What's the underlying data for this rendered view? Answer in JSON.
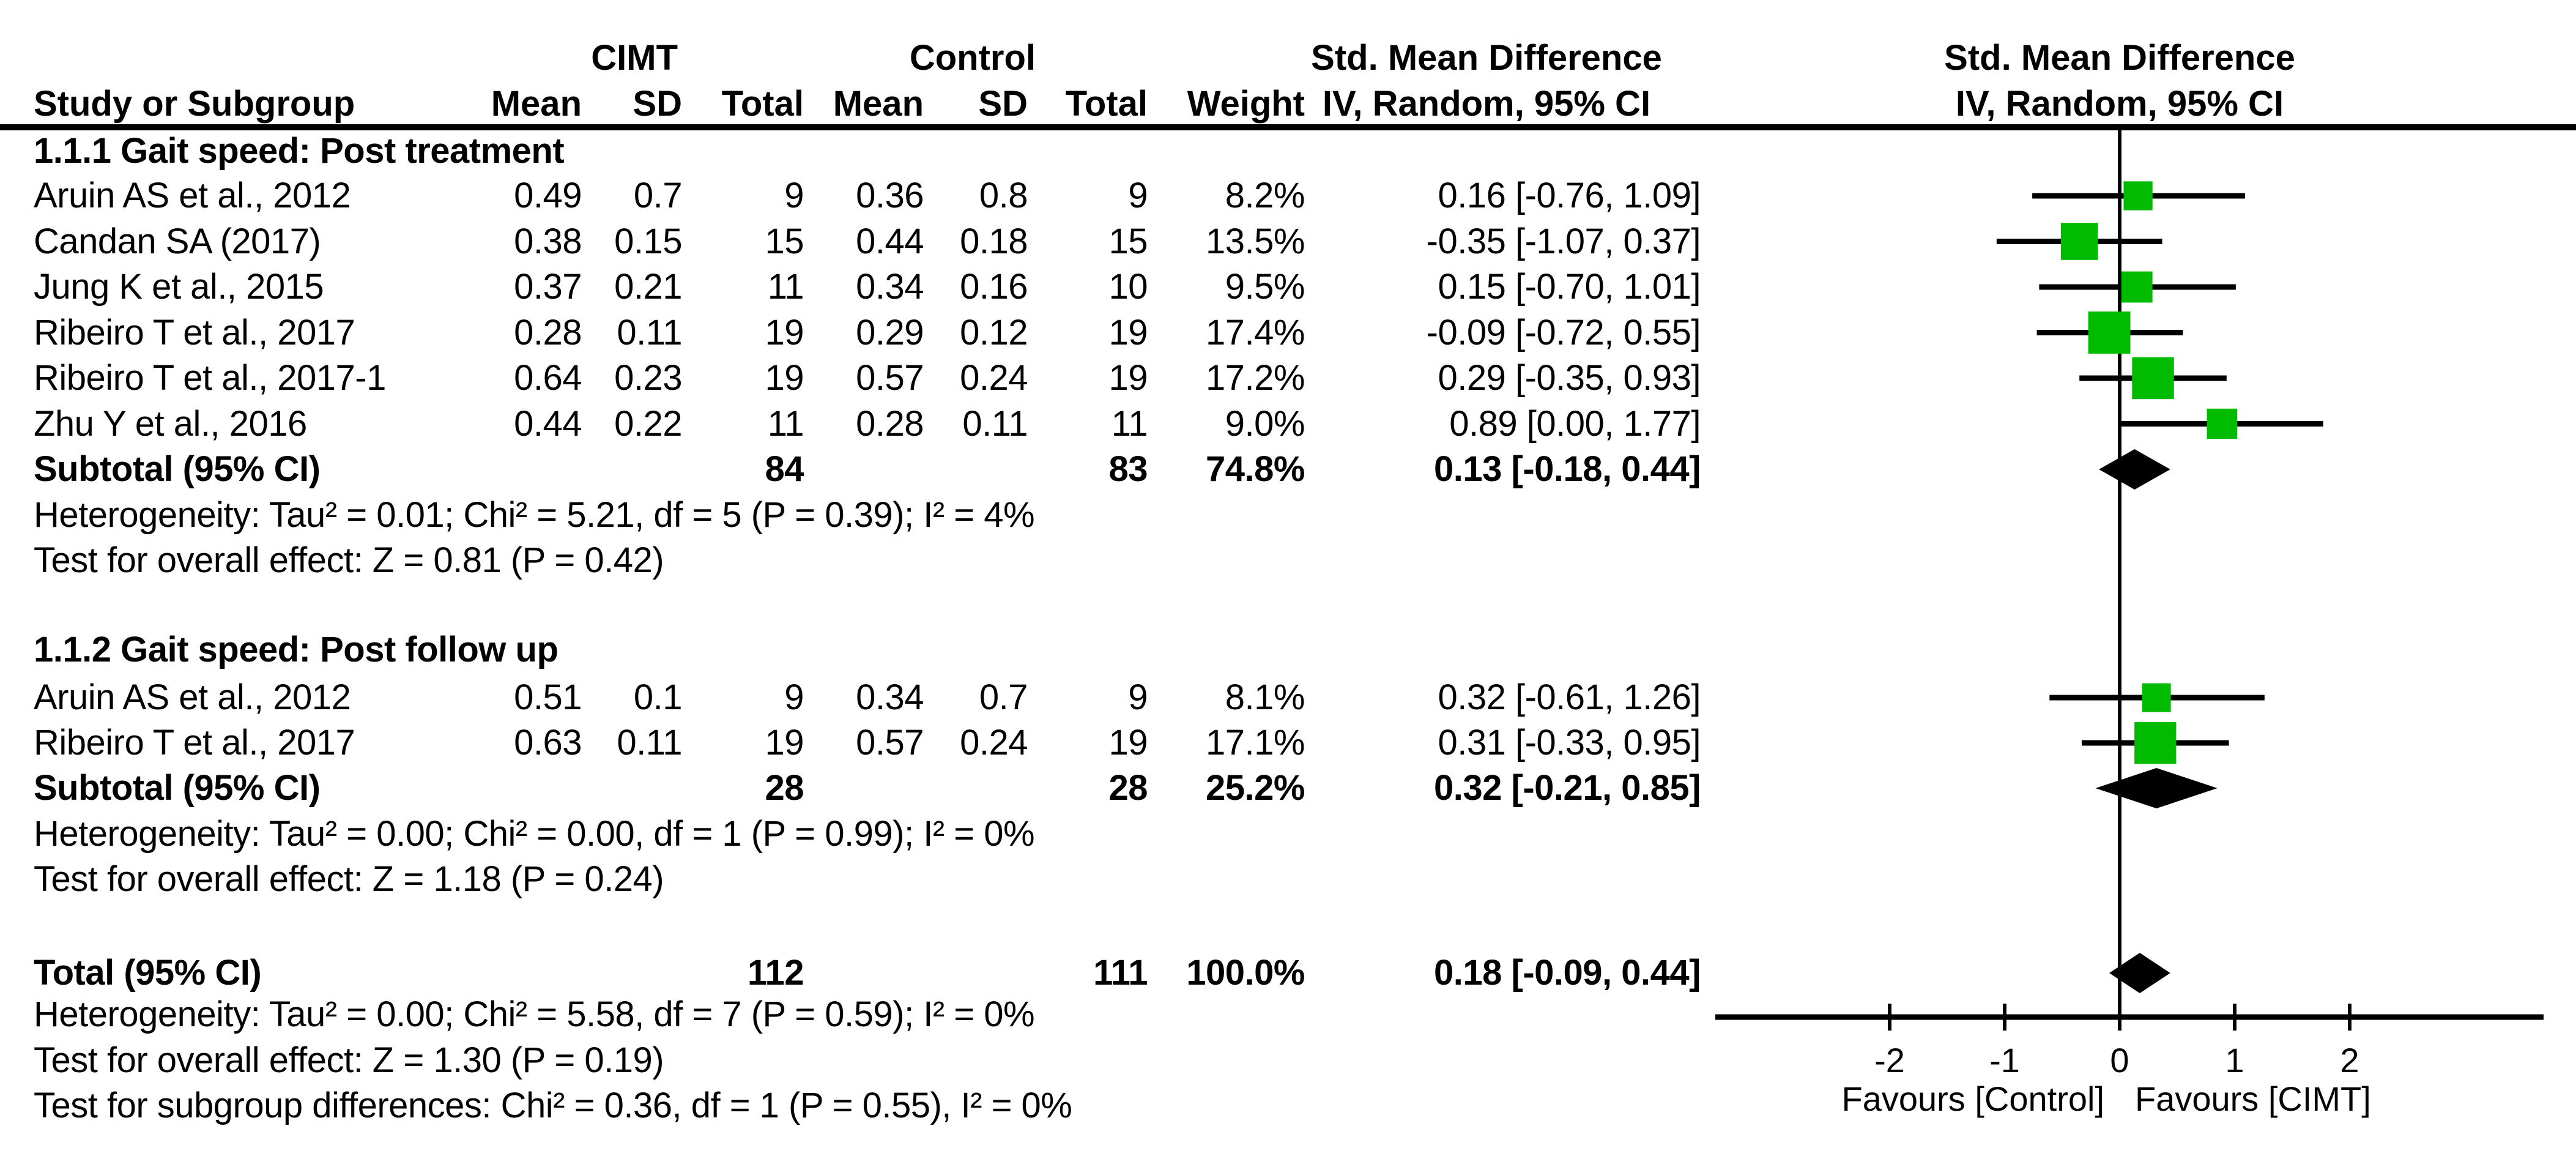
{
  "header": {
    "cimt_label": "CIMT",
    "control_label": "Control",
    "study_col": "Study or Subgroup",
    "mean_col": "Mean",
    "sd_col": "SD",
    "total_col": "Total",
    "weight_col": "Weight",
    "smd_table_title": "Std. Mean Difference",
    "smd_table_sub": "IV, Random, 95% CI",
    "smd_plot_title": "Std. Mean Difference",
    "smd_plot_sub": "IV, Random, 95% CI"
  },
  "chart_data": {
    "type": "forest",
    "effect_measure": "Std. Mean Difference",
    "method": "IV, Random, 95% CI",
    "marker_color": "#00BB00",
    "line_color": "#000000",
    "axis": {
      "ticks": [
        -2,
        -1,
        0,
        1,
        2
      ],
      "xlim": [
        -3.5,
        3.65
      ],
      "favours_left": "Favours [Control]",
      "favours_right": "Favours [CIMT]"
    },
    "groups": [
      {
        "title": "1.1.1 Gait speed: Post treatment",
        "studies": [
          {
            "name": "Aruin AS et al., 2012",
            "mean1": "0.49",
            "sd1": "0.7",
            "total1": "9",
            "mean2": "0.36",
            "sd2": "0.8",
            "total2": "9",
            "weight": "8.2%",
            "ci_text": "0.16 [-0.76, 1.09]",
            "smd": 0.16,
            "lo": -0.76,
            "hi": 1.09,
            "w": 8.2
          },
          {
            "name": "Candan SA (2017)",
            "mean1": "0.38",
            "sd1": "0.15",
            "total1": "15",
            "mean2": "0.44",
            "sd2": "0.18",
            "total2": "15",
            "weight": "13.5%",
            "ci_text": "-0.35 [-1.07, 0.37]",
            "smd": -0.35,
            "lo": -1.07,
            "hi": 0.37,
            "w": 13.5
          },
          {
            "name": "Jung K et al., 2015",
            "mean1": "0.37",
            "sd1": "0.21",
            "total1": "11",
            "mean2": "0.34",
            "sd2": "0.16",
            "total2": "10",
            "weight": "9.5%",
            "ci_text": "0.15 [-0.70, 1.01]",
            "smd": 0.15,
            "lo": -0.7,
            "hi": 1.01,
            "w": 9.5
          },
          {
            "name": "Ribeiro T et al., 2017",
            "mean1": "0.28",
            "sd1": "0.11",
            "total1": "19",
            "mean2": "0.29",
            "sd2": "0.12",
            "total2": "19",
            "weight": "17.4%",
            "ci_text": "-0.09 [-0.72, 0.55]",
            "smd": -0.09,
            "lo": -0.72,
            "hi": 0.55,
            "w": 17.4
          },
          {
            "name": "Ribeiro T et al., 2017-1",
            "mean1": "0.64",
            "sd1": "0.23",
            "total1": "19",
            "mean2": "0.57",
            "sd2": "0.24",
            "total2": "19",
            "weight": "17.2%",
            "ci_text": "0.29 [-0.35, 0.93]",
            "smd": 0.29,
            "lo": -0.35,
            "hi": 0.93,
            "w": 17.2
          },
          {
            "name": "Zhu Y et al., 2016",
            "mean1": "0.44",
            "sd1": "0.22",
            "total1": "11",
            "mean2": "0.28",
            "sd2": "0.11",
            "total2": "11",
            "weight": "9.0%",
            "ci_text": "0.89 [0.00, 1.77]",
            "smd": 0.89,
            "lo": 0.0,
            "hi": 1.77,
            "w": 9.0
          }
        ],
        "subtotal": {
          "label": "Subtotal (95% CI)",
          "total1": "84",
          "total2": "83",
          "weight": "74.8%",
          "ci_text": "0.13 [-0.18, 0.44]",
          "smd": 0.13,
          "lo": -0.18,
          "hi": 0.44
        },
        "heterogeneity": "Heterogeneity: Tau² = 0.01; Chi² = 5.21, df = 5 (P = 0.39); I² = 4%",
        "overall_effect": "Test for overall effect: Z = 0.81 (P = 0.42)"
      },
      {
        "title": "1.1.2 Gait speed: Post follow up",
        "studies": [
          {
            "name": "Aruin AS et al., 2012",
            "mean1": "0.51",
            "sd1": "0.1",
            "total1": "9",
            "mean2": "0.34",
            "sd2": "0.7",
            "total2": "9",
            "weight": "8.1%",
            "ci_text": "0.32 [-0.61, 1.26]",
            "smd": 0.32,
            "lo": -0.61,
            "hi": 1.26,
            "w": 8.1
          },
          {
            "name": "Ribeiro T et al., 2017",
            "mean1": "0.63",
            "sd1": "0.11",
            "total1": "19",
            "mean2": "0.57",
            "sd2": "0.24",
            "total2": "19",
            "weight": "17.1%",
            "ci_text": "0.31 [-0.33, 0.95]",
            "smd": 0.31,
            "lo": -0.33,
            "hi": 0.95,
            "w": 17.1
          }
        ],
        "subtotal": {
          "label": "Subtotal (95% CI)",
          "total1": "28",
          "total2": "28",
          "weight": "25.2%",
          "ci_text": "0.32 [-0.21, 0.85]",
          "smd": 0.32,
          "lo": -0.21,
          "hi": 0.85
        },
        "heterogeneity": "Heterogeneity: Tau² = 0.00; Chi² = 0.00, df = 1 (P = 0.99); I² = 0%",
        "overall_effect": "Test for overall effect: Z = 1.18 (P = 0.24)"
      }
    ],
    "total": {
      "label": "Total (95% CI)",
      "total1": "112",
      "total2": "111",
      "weight": "100.0%",
      "ci_text": "0.18 [-0.09, 0.44]",
      "smd": 0.18,
      "lo": -0.09,
      "hi": 0.44
    },
    "total_heterogeneity": "Heterogeneity: Tau² = 0.00; Chi² = 5.58, df = 7 (P = 0.59); I² = 0%",
    "total_overall_effect": "Test for overall effect: Z = 1.30 (P = 0.19)",
    "subgroup_difference": "Test for subgroup differences: Chi² = 0.36, df = 1 (P = 0.55), I² = 0%"
  }
}
